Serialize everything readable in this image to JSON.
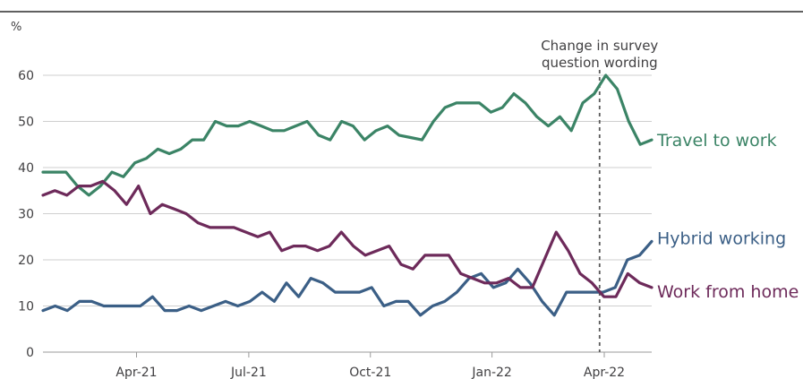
{
  "chart_data": {
    "type": "line",
    "unit_label": "%",
    "ylim": [
      0,
      65
    ],
    "yticks": [
      0,
      10,
      20,
      30,
      40,
      50,
      60
    ],
    "xlim": [
      0,
      65
    ],
    "x_ticks": [
      {
        "x": 10,
        "label": "Apr-21"
      },
      {
        "x": 22,
        "label": "Jul-21"
      },
      {
        "x": 35,
        "label": "Oct-21"
      },
      {
        "x": 48,
        "label": "Jan-22"
      },
      {
        "x": 60,
        "label": "Apr-22"
      }
    ],
    "grid": true,
    "annotation": {
      "x": 59.5,
      "lines": [
        "Change in survey",
        "question wording"
      ]
    },
    "series": [
      {
        "name": "Travel to work",
        "color": "#3b8466",
        "points": [
          [
            0,
            39
          ],
          [
            1,
            39
          ],
          [
            2,
            39
          ],
          [
            3,
            36
          ],
          [
            4,
            34
          ],
          [
            5,
            36
          ],
          [
            6,
            39
          ],
          [
            7,
            38
          ],
          [
            8,
            41
          ],
          [
            9,
            42
          ],
          [
            10,
            44
          ],
          [
            11,
            43
          ],
          [
            12,
            44
          ],
          [
            13,
            46
          ],
          [
            14,
            46
          ],
          [
            15,
            50
          ],
          [
            16,
            49
          ],
          [
            17,
            49
          ],
          [
            18,
            50
          ],
          [
            19,
            49
          ],
          [
            20,
            48
          ],
          [
            21,
            48
          ],
          [
            22,
            49
          ],
          [
            23,
            50
          ],
          [
            24,
            47
          ],
          [
            25,
            46
          ],
          [
            26,
            50
          ],
          [
            27,
            49
          ],
          [
            28,
            46
          ],
          [
            29,
            48
          ],
          [
            30,
            49
          ],
          [
            31,
            47
          ],
          [
            32,
            46.5
          ],
          [
            33,
            46
          ],
          [
            34,
            50
          ],
          [
            35,
            53
          ],
          [
            36,
            54
          ],
          [
            37,
            54
          ],
          [
            38,
            54
          ],
          [
            39,
            52
          ],
          [
            40,
            53
          ],
          [
            41,
            56
          ],
          [
            42,
            54
          ],
          [
            43,
            51
          ],
          [
            44,
            49
          ],
          [
            45,
            51
          ],
          [
            46,
            48
          ],
          [
            47,
            54
          ],
          [
            48,
            56
          ],
          [
            49,
            60
          ],
          [
            50,
            57
          ],
          [
            51,
            50
          ],
          [
            52,
            45
          ],
          [
            53,
            46
          ]
        ]
      },
      {
        "name": "Hybrid working",
        "color": "#3b5f86",
        "points": [
          [
            0,
            9
          ],
          [
            1,
            10
          ],
          [
            2,
            9
          ],
          [
            3,
            11
          ],
          [
            4,
            11
          ],
          [
            5,
            10
          ],
          [
            6,
            10
          ],
          [
            7,
            10
          ],
          [
            8,
            10
          ],
          [
            9,
            12
          ],
          [
            10,
            9
          ],
          [
            11,
            9
          ],
          [
            12,
            10
          ],
          [
            13,
            9
          ],
          [
            14,
            10
          ],
          [
            15,
            11
          ],
          [
            16,
            10
          ],
          [
            17,
            11
          ],
          [
            18,
            13
          ],
          [
            19,
            11
          ],
          [
            20,
            15
          ],
          [
            21,
            12
          ],
          [
            22,
            16
          ],
          [
            23,
            15
          ],
          [
            24,
            13
          ],
          [
            25,
            13
          ],
          [
            26,
            13
          ],
          [
            27,
            14
          ],
          [
            28,
            10
          ],
          [
            29,
            11
          ],
          [
            30,
            11
          ],
          [
            31,
            8
          ],
          [
            32,
            10
          ],
          [
            33,
            11
          ],
          [
            34,
            13
          ],
          [
            35,
            16
          ],
          [
            36,
            17
          ],
          [
            37,
            14
          ],
          [
            38,
            15
          ],
          [
            39,
            18
          ],
          [
            40,
            15
          ],
          [
            41,
            11
          ],
          [
            42,
            8
          ],
          [
            43,
            13
          ],
          [
            44,
            13
          ],
          [
            45,
            13
          ],
          [
            46,
            13
          ],
          [
            47,
            14
          ],
          [
            48,
            20
          ],
          [
            49,
            21
          ],
          [
            50,
            24
          ]
        ]
      },
      {
        "name": "Work from home",
        "color": "#6d2a5a",
        "points": [
          [
            0,
            34
          ],
          [
            1,
            35
          ],
          [
            2,
            34
          ],
          [
            3,
            36
          ],
          [
            4,
            36
          ],
          [
            5,
            37
          ],
          [
            6,
            35
          ],
          [
            7,
            32
          ],
          [
            8,
            36
          ],
          [
            9,
            30
          ],
          [
            10,
            32
          ],
          [
            11,
            31
          ],
          [
            12,
            30
          ],
          [
            13,
            28
          ],
          [
            14,
            27
          ],
          [
            15,
            27
          ],
          [
            16,
            27
          ],
          [
            17,
            26
          ],
          [
            18,
            25
          ],
          [
            19,
            26
          ],
          [
            20,
            22
          ],
          [
            21,
            23
          ],
          [
            22,
            23
          ],
          [
            23,
            22
          ],
          [
            24,
            23
          ],
          [
            25,
            26
          ],
          [
            26,
            23
          ],
          [
            27,
            21
          ],
          [
            28,
            22
          ],
          [
            29,
            23
          ],
          [
            30,
            19
          ],
          [
            31,
            18
          ],
          [
            32,
            21
          ],
          [
            33,
            21
          ],
          [
            34,
            21
          ],
          [
            35,
            17
          ],
          [
            36,
            16
          ],
          [
            37,
            15
          ],
          [
            38,
            15
          ],
          [
            39,
            16
          ],
          [
            40,
            14
          ],
          [
            41,
            14
          ],
          [
            42,
            20
          ],
          [
            43,
            26
          ],
          [
            44,
            22
          ],
          [
            45,
            17
          ],
          [
            46,
            15
          ],
          [
            47,
            12
          ],
          [
            48,
            12
          ],
          [
            49,
            17
          ],
          [
            50,
            15
          ],
          [
            51,
            14
          ]
        ]
      }
    ]
  }
}
